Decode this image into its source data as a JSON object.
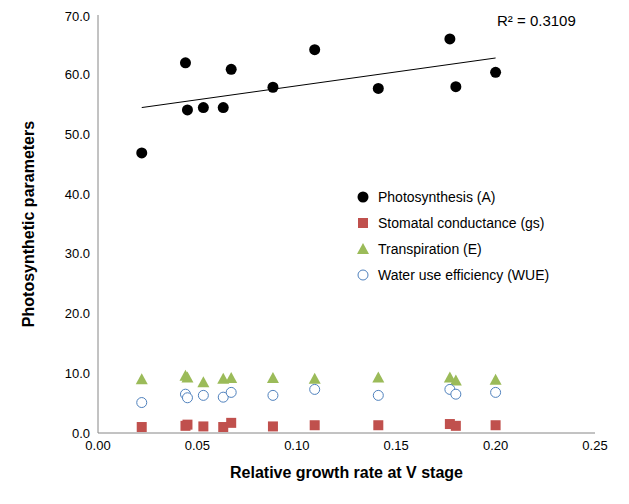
{
  "chart_data": {
    "type": "scatter",
    "xlabel": "Relative growth rate at V stage",
    "ylabel": "Photosynthetic parameters",
    "annotation": "R² = 0.3109",
    "x": [
      0.022,
      0.044,
      0.045,
      0.053,
      0.063,
      0.067,
      0.088,
      0.109,
      0.141,
      0.177,
      0.18,
      0.2
    ],
    "series": [
      {
        "name": "Photosynthesis (A)",
        "color": "#000000",
        "marker": "circle",
        "values": [
          46.9,
          62.0,
          54.1,
          54.5,
          54.5,
          60.9,
          57.9,
          64.2,
          57.7,
          66.0,
          58.0,
          60.4
        ]
      },
      {
        "name": "Stomatal conductance (gs)",
        "color": "#c0504d",
        "marker": "square",
        "values": [
          1.0,
          1.2,
          1.4,
          1.1,
          1.0,
          1.7,
          1.1,
          1.3,
          1.3,
          1.5,
          1.2,
          1.3
        ]
      },
      {
        "name": "Transpiration (E)",
        "color": "#9bbb59",
        "marker": "triangle",
        "values": [
          9.0,
          9.6,
          9.3,
          8.5,
          9.1,
          9.2,
          9.2,
          9.1,
          9.3,
          9.3,
          8.8,
          8.9
        ]
      },
      {
        "name": "Water use efficiency (WUE)",
        "color": "#4f81bd",
        "marker": "open_circle",
        "values": [
          5.1,
          6.5,
          5.9,
          6.3,
          6.0,
          6.8,
          6.3,
          7.3,
          6.3,
          7.3,
          6.5,
          6.8
        ]
      }
    ],
    "trendline": {
      "x": [
        0.022,
        0.2
      ],
      "values": [
        54.5,
        62.8
      ],
      "color": "#000000"
    },
    "xlim": [
      0,
      0.25
    ],
    "xticks": [
      {
        "value": 0,
        "label": "0.00"
      },
      {
        "value": 0.05,
        "label": "0.05"
      },
      {
        "value": 0.1,
        "label": "0.10"
      },
      {
        "value": 0.15,
        "label": "0.15"
      },
      {
        "value": 0.2,
        "label": "0.20"
      },
      {
        "value": 0.25,
        "label": "0.25"
      }
    ],
    "ylim": [
      0,
      70
    ],
    "yticks": [
      {
        "value": 0,
        "label": "0.0"
      },
      {
        "value": 10,
        "label": "10.0"
      },
      {
        "value": 20,
        "label": "20.0"
      },
      {
        "value": 30,
        "label": "30.0"
      },
      {
        "value": 40,
        "label": "40.0"
      },
      {
        "value": 50,
        "label": "50.0"
      },
      {
        "value": 60,
        "label": "60.0"
      },
      {
        "value": 70,
        "label": "70.0"
      }
    ],
    "grid": false,
    "legend": "right"
  }
}
